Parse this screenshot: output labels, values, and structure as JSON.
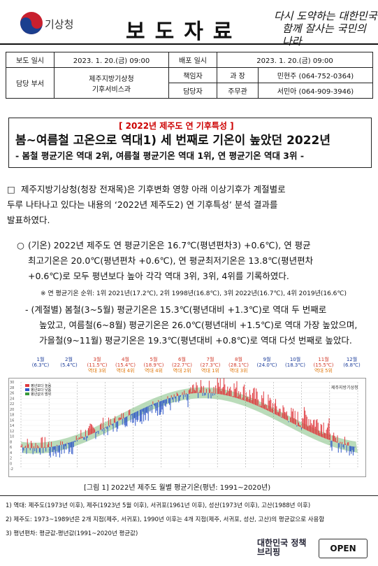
{
  "header": {
    "org_name": "기상청",
    "title": "보도자료",
    "slogan_line1": "다시 도약하는 대한민국",
    "slogan_line2": "함께 잘사는 국민의 나라"
  },
  "info": {
    "release_label": "보도 일시",
    "release_value": "2023. 1. 20.(금) 09:00",
    "distribute_label": "배포 일시",
    "distribute_value": "2023. 1. 20.(금) 09:00",
    "dept_label": "담당 부서",
    "dept_line1": "제주지방기상청",
    "dept_line2": "기후서비스과",
    "manager_label": "책임자",
    "manager_role": "과 장",
    "manager_contact": "민현주 (064-752-0364)",
    "staff_label": "담당자",
    "staff_role": "주무관",
    "staff_contact": "서민아 (064-909-3946)"
  },
  "headline": {
    "tag": "[ 2022년 제주도 연 기후특성 ]",
    "title": "봄~여름철 고온으로 역대1) 세 번째로 기온이 높았던 2022년",
    "subtitle": "- 봄철 평균기온 역대 2위, 여름철 평균기온 역대 1위, 연 평균기온 역대 3위 -"
  },
  "body": {
    "bullet": "□",
    "intro_1": "제주지방기상청(청장 전재목)은 기후변화 영향 아래 이상기후가 계절별로",
    "intro_2": "두루 나타나고 있다는 내용의 ‘2022년 제주도2) 연 기후특성’ 분석 결과를",
    "intro_3": "발표하였다.",
    "circle": "○",
    "temp_1": "(기온) 2022년 제주도 연 평균기온은 16.7℃(평년편차3) +0.6℃), 연 평균",
    "temp_2": "최고기온은 20.0℃(평년편차 +0.6℃), 연 평균최저기온은 13.8℃(평년편차",
    "temp_3": "+0.6℃)로 모두 평년보다 높아 각각 역대 3위, 3위, 4위를 기록하였다.",
    "rank_note": "※ 연 평균기온 순위: 1위 2021년(17.2℃), 2위 1998년(16.8℃), 3위 2022년(16.7℃), 4위 2019년(16.6℃)",
    "season_1": "- (계절별) 봄철(3~5월) 평균기온은 15.3℃(평년대비 +1.3℃)로 역대 두 번째로",
    "season_2": "높았고, 여름철(6~8월) 평균기온은 26.0℃(평년대비 +1.5℃)로 역대 가장 높았으며,",
    "season_3": "가을철(9~11월) 평균기온은 19.3℃(평년대비 +0.8℃)로 역대 다섯 번째로 높았다."
  },
  "months": [
    {
      "name": "1월",
      "temp": "(6.3℃)",
      "rank": ""
    },
    {
      "name": "2월",
      "temp": "(5.4℃)",
      "rank": ""
    },
    {
      "name": "3월",
      "temp": "(11.5℃)",
      "rank": "역대 3위"
    },
    {
      "name": "4월",
      "temp": "(15.4℃)",
      "rank": "역대 4위"
    },
    {
      "name": "5월",
      "temp": "(18.9℃)",
      "rank": "역대 4위"
    },
    {
      "name": "6월",
      "temp": "(22.7℃)",
      "rank": "역대 2위"
    },
    {
      "name": "7월",
      "temp": "(27.3℃)",
      "rank": "역대 1위"
    },
    {
      "name": "8월",
      "temp": "(28.1℃)",
      "rank": "역대 3위"
    },
    {
      "name": "9월",
      "temp": "(24.0℃)",
      "rank": ""
    },
    {
      "name": "10월",
      "temp": "(18.3℃)",
      "rank": ""
    },
    {
      "name": "11월",
      "temp": "(15.5℃)",
      "rank": "역대 5위"
    },
    {
      "name": "12월",
      "temp": "(6.8℃)",
      "rank": ""
    }
  ],
  "chart_data": {
    "type": "line",
    "ylim": [
      -2,
      30
    ],
    "yticks": [
      "30",
      "28",
      "26",
      "24",
      "22",
      "20",
      "18",
      "16",
      "14",
      "12",
      "10",
      "8",
      "6",
      "4",
      "2",
      "0",
      "-2"
    ],
    "legend": [
      "평년보다 높음",
      "평년보다 낮음",
      "평년값의 범위"
    ],
    "watermark": "제주지방기상청",
    "monthly_mean": [
      6.3,
      5.4,
      11.5,
      15.4,
      18.9,
      22.7,
      27.3,
      28.1,
      24.0,
      18.3,
      15.5,
      6.8
    ],
    "colors": {
      "above": "#e0393e",
      "below": "#2f57c8",
      "normal_band": "#3a9a3a"
    }
  },
  "figure_caption": "[그림 1] 2022년 제주도 월별 평균기온(평년: 1991~2020년)",
  "footnotes": {
    "f1": "1) 역대: 제주도(1973년 이후), 제주(1923년 5월 이후), 서귀포(1961년 이후), 성산(1973년 이후), 고산(1988년 이후)",
    "f2": "2) 제주도: 1973~1989년은 2개 지점(제주, 서귀포), 1990년 이후는 4개 지점(제주, 서귀포, 성산, 고산)의 평균값으로 사용함",
    "f3": "3) 평년편차: 평균값-평년값(1991~2020년 평균값)"
  },
  "footer": {
    "brand": "대한민국 정책브리핑",
    "open": "OPEN"
  }
}
